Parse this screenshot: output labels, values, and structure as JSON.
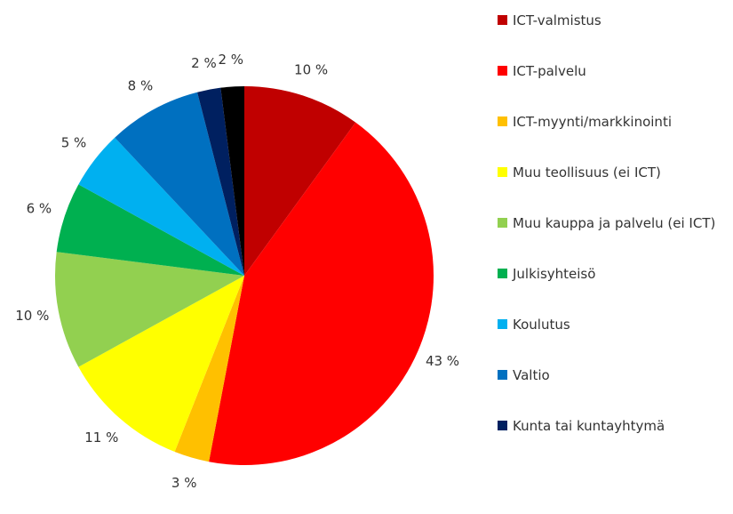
{
  "chart_data": {
    "type": "pie",
    "categories": [
      "ICT-valmistus",
      "ICT-palvelu",
      "ICT-myynti/markkinointi",
      "Muu teollisuus (ei ICT)",
      "Muu kauppa ja palvelu (ei ICT)",
      "Julkisyhteisö",
      "Koulutus",
      "Valtio",
      "Kunta tai kuntayhtymä",
      null
    ],
    "values": [
      10,
      43,
      3,
      11,
      10,
      6,
      5,
      8,
      2,
      2
    ],
    "value_labels": [
      "10 %",
      "43 %",
      "3 %",
      "11 %",
      "10 %",
      "6 %",
      "5 %",
      "8 %",
      "2 %",
      "2 %"
    ],
    "colors": [
      "#c00000",
      "#ff0000",
      "#ffc000",
      "#ffff00",
      "#92d050",
      "#00b050",
      "#00b0f0",
      "#0070c0",
      "#002060",
      "#000000"
    ],
    "legend": "right"
  }
}
